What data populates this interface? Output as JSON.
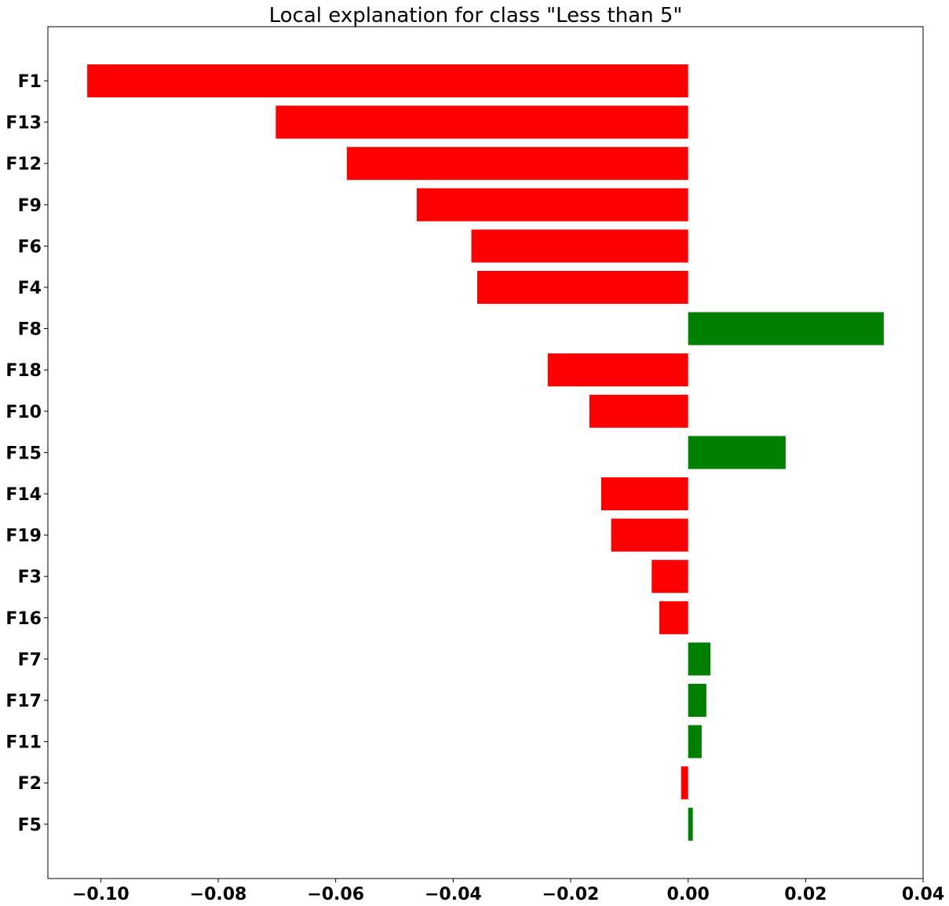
{
  "chart_data": {
    "type": "bar",
    "orientation": "horizontal",
    "title": "Local explanation for class \"Less than 5\"",
    "xlabel": "",
    "ylabel": "",
    "xlim": [
      -0.109,
      0.04
    ],
    "grid": false,
    "legend": "none",
    "categories": [
      "F1",
      "F13",
      "F12",
      "F9",
      "F6",
      "F4",
      "F8",
      "F18",
      "F10",
      "F15",
      "F14",
      "F19",
      "F3",
      "F16",
      "F7",
      "F17",
      "F11",
      "F2",
      "F5"
    ],
    "values": [
      -0.1023,
      -0.0702,
      -0.0581,
      -0.0462,
      -0.0369,
      -0.0359,
      0.0333,
      -0.0239,
      -0.0168,
      0.0166,
      -0.0148,
      -0.0131,
      -0.0062,
      -0.0049,
      0.0038,
      0.0031,
      0.0023,
      -0.0012,
      0.0008
    ],
    "x_ticks": [
      -0.1,
      -0.08,
      -0.06,
      -0.04,
      -0.02,
      0.0,
      0.02,
      0.04
    ],
    "x_tick_labels": [
      "−0.10",
      "−0.08",
      "−0.06",
      "−0.04",
      "−0.02",
      "0.00",
      "0.02",
      "0.04"
    ],
    "colors": {
      "negative": "#ff0000",
      "positive": "#008000"
    }
  }
}
